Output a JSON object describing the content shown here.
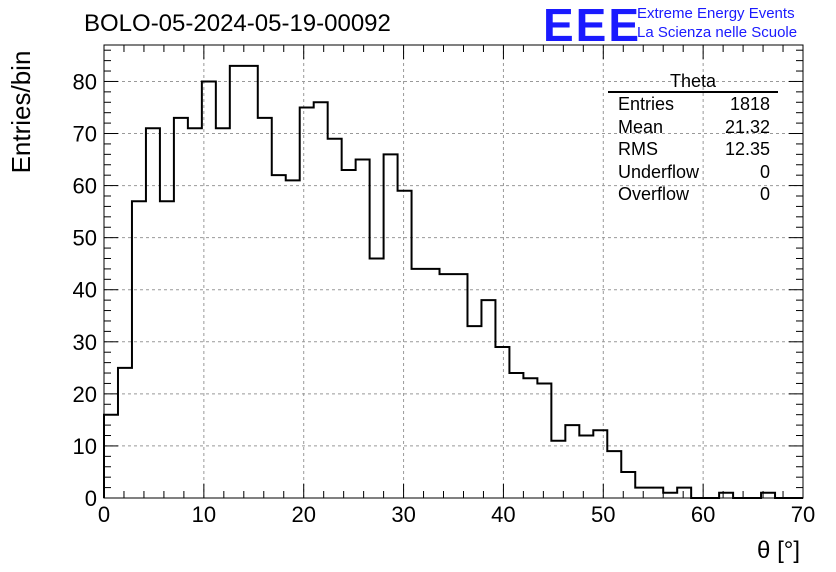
{
  "header": {
    "title": "BOLO-05-2024-05-19-00092",
    "logo_letters": "EEE",
    "logo_line1": "Extreme Energy Events",
    "logo_line2": "La Scienza nelle Scuole",
    "brand_color": "#1a1aff"
  },
  "stats_box": {
    "title": "Theta",
    "rows": [
      {
        "label": "Entries",
        "value": "1818"
      },
      {
        "label": "Mean",
        "value": "21.32"
      },
      {
        "label": "RMS",
        "value": "12.35"
      },
      {
        "label": "Underflow",
        "value": "0"
      },
      {
        "label": "Overflow",
        "value": "0"
      }
    ]
  },
  "chart_data": {
    "type": "bar",
    "histogram": true,
    "title": "BOLO-05-2024-05-19-00092",
    "xlabel": "θ [°]",
    "ylabel": "Entries/bin",
    "xlim": [
      0,
      70
    ],
    "ylim": [
      0,
      87
    ],
    "bin_width": 1.4,
    "x_ticks": [
      0,
      10,
      20,
      30,
      40,
      50,
      60,
      70
    ],
    "y_ticks": [
      0,
      10,
      20,
      30,
      40,
      50,
      60,
      70,
      80
    ],
    "grid": true,
    "values": [
      16,
      25,
      57,
      71,
      57,
      73,
      71,
      80,
      71,
      83,
      83,
      73,
      62,
      61,
      75,
      76,
      69,
      63,
      65,
      46,
      66,
      59,
      44,
      44,
      43,
      43,
      33,
      38,
      29,
      24,
      23,
      22,
      11,
      14,
      12,
      13,
      9,
      5,
      2,
      2,
      1,
      2,
      0,
      0,
      1,
      0,
      0,
      1,
      0,
      0
    ]
  }
}
